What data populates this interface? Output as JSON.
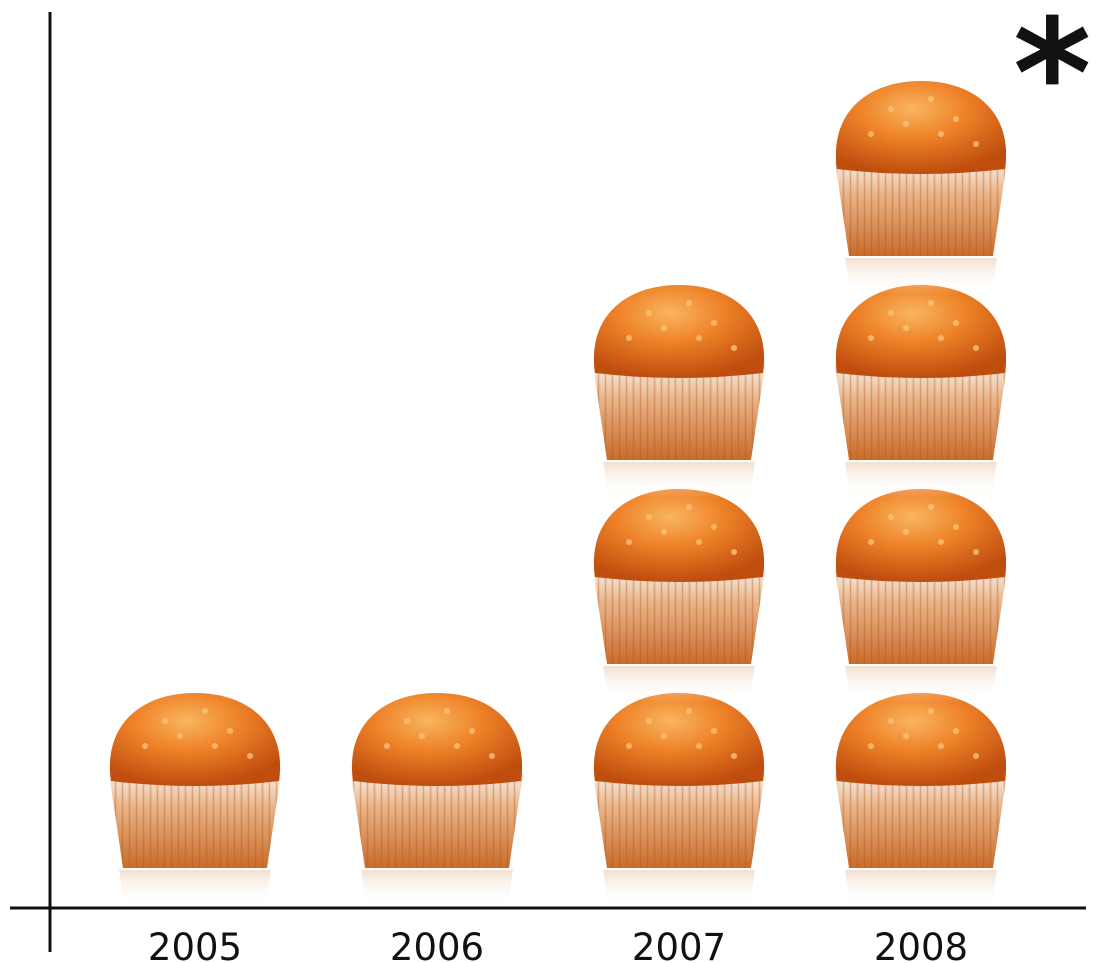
{
  "chart_data": {
    "type": "bar",
    "style": "pictograph",
    "unit_icon": "muffin-icon",
    "categories": [
      "2005",
      "2006",
      "2007",
      "2008"
    ],
    "values": [
      1,
      1,
      3,
      4
    ],
    "title": "",
    "xlabel": "",
    "ylabel": "",
    "ylim": [
      0,
      4
    ],
    "grid": false,
    "annotation": "*"
  },
  "colors": {
    "muffin_top": "#e8731e",
    "muffin_top_highlight": "#f6a24a",
    "muffin_top_shadow": "#b9480c",
    "wrapper": "#d9874a",
    "wrapper_light": "#f3e6da",
    "axis": "#111111"
  }
}
